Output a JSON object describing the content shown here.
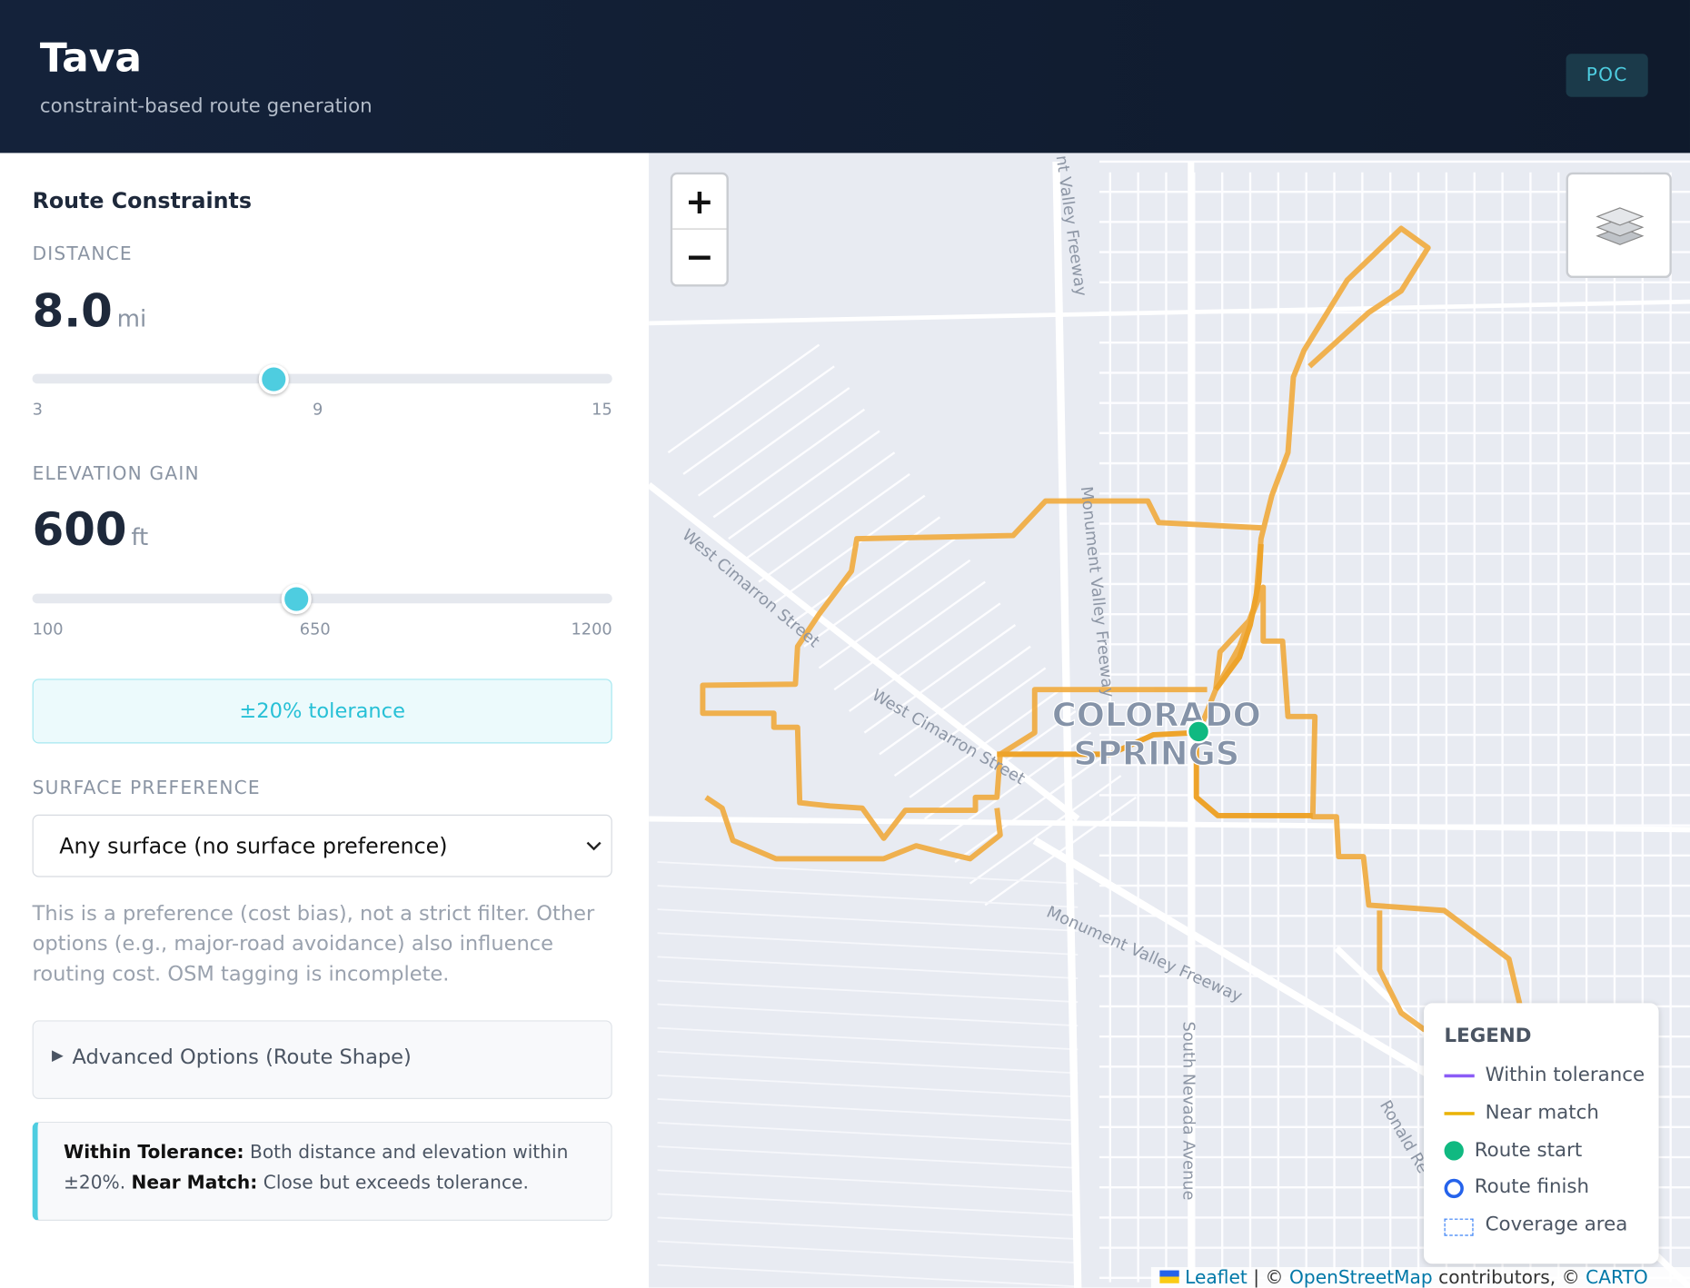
{
  "header": {
    "title": "Tava",
    "subtitle": "constraint-based route generation",
    "badge": "POC"
  },
  "sidebar": {
    "heading": "Route Constraints",
    "distance": {
      "label": "DISTANCE",
      "value": "8.0",
      "unit": "mi",
      "min": "3",
      "mid": "9",
      "max": "15"
    },
    "elevation": {
      "label": "ELEVATION GAIN",
      "value": "600",
      "unit": "ft",
      "min": "100",
      "mid": "650",
      "max": "1200"
    },
    "tolerance": "±20% tolerance",
    "surface": {
      "label": "SURFACE PREFERENCE",
      "selected": "Any surface (no surface preference)",
      "note": "This is a preference (cost bias), not a strict filter. Other options (e.g., major-road avoidance) also influence routing cost. OSM tagging is incomplete."
    },
    "advanced": "Advanced Options (Route Shape)",
    "info": {
      "term1": "Within Tolerance:",
      "text1": "Both distance and elevation within ±20%.",
      "term2": "Near Match:",
      "text2": "Close but exceeds tolerance."
    }
  },
  "map": {
    "zoom_in": "+",
    "zoom_out": "−",
    "city": [
      "COLORADO",
      "SPRINGS"
    ],
    "streets": [
      "West Cimarron Street",
      "West Cimarron Street",
      "Monument Valley Freeway",
      "Monument Valley Freeway",
      "nt Valley Freeway",
      "South Nevada Avenue",
      "Ronald Re"
    ],
    "legend": {
      "title": "LEGEND",
      "items": [
        "Within tolerance",
        "Near match",
        "Route start",
        "Route finish",
        "Coverage area"
      ]
    },
    "attribution": [
      "Leaflet",
      "| ©",
      "OpenStreetMap",
      "contributors, ©",
      "CARTO"
    ]
  }
}
